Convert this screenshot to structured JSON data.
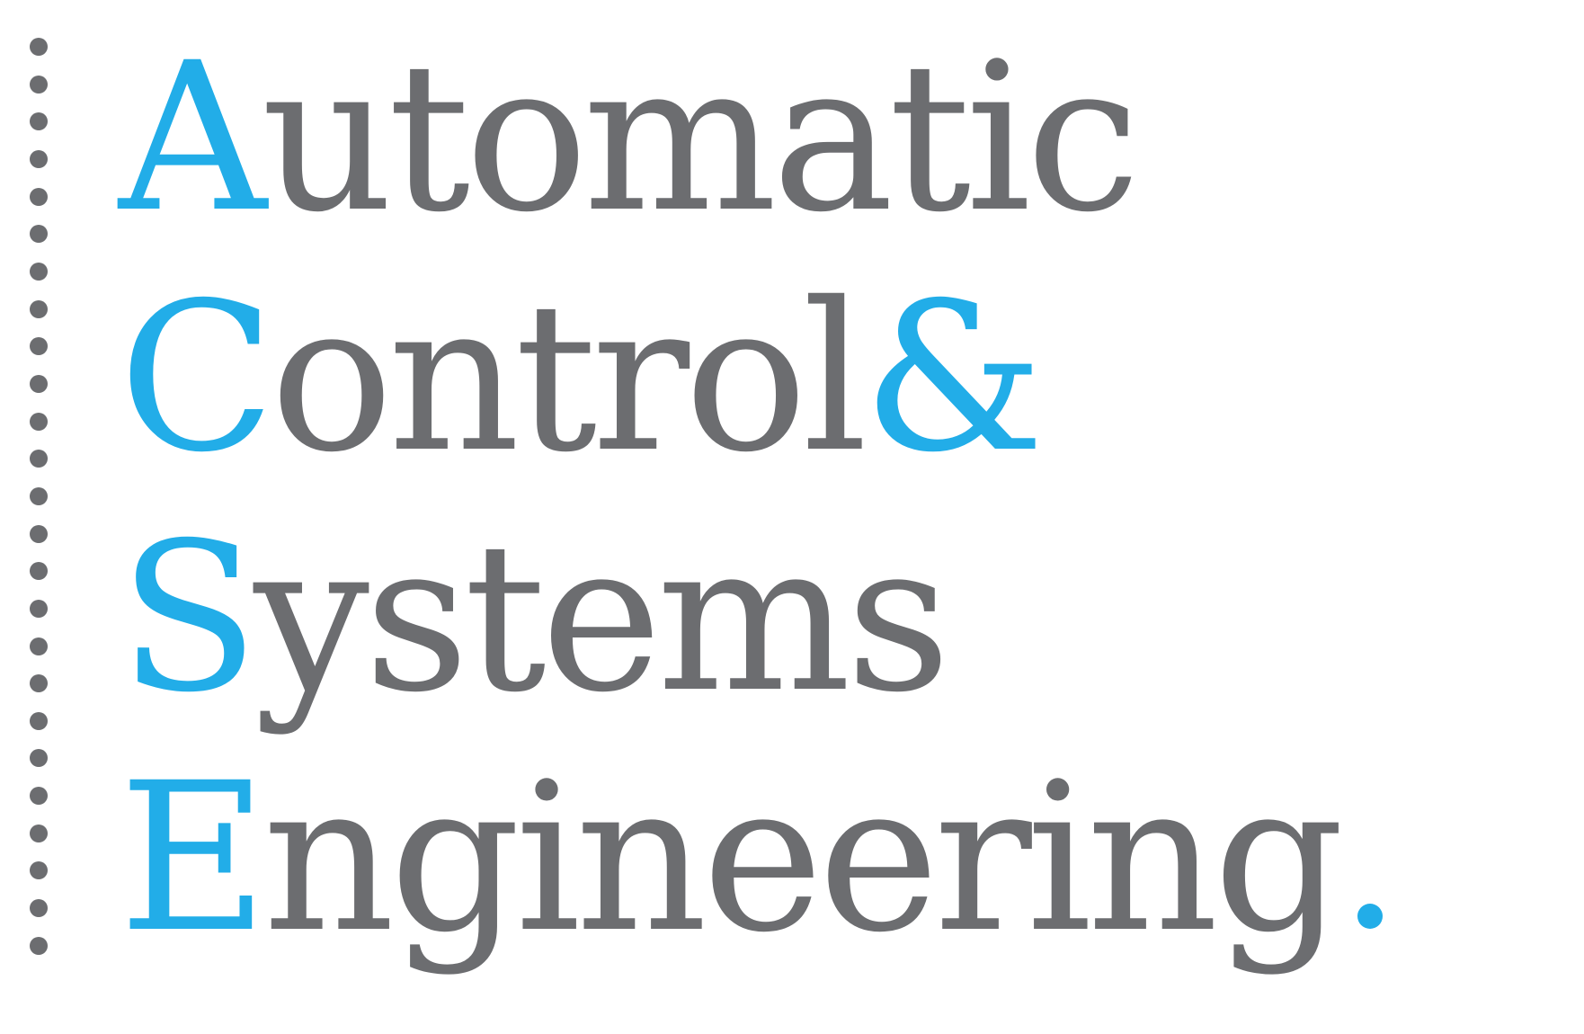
{
  "logo": {
    "lines": [
      {
        "initial": "A",
        "rest": "utomatic"
      },
      {
        "initial": "C",
        "rest": "ontrol",
        "ampersand": "&"
      },
      {
        "initial": "S",
        "rest": "ystems"
      },
      {
        "initial": "E",
        "rest": "ngineering",
        "period": "."
      }
    ]
  },
  "colors": {
    "accent": "#22ade8",
    "text": "#6c6d70",
    "dots": "#6c6d70"
  },
  "decoration": {
    "dot_count": 25,
    "dot_icon": "vertical-dotted-line"
  }
}
